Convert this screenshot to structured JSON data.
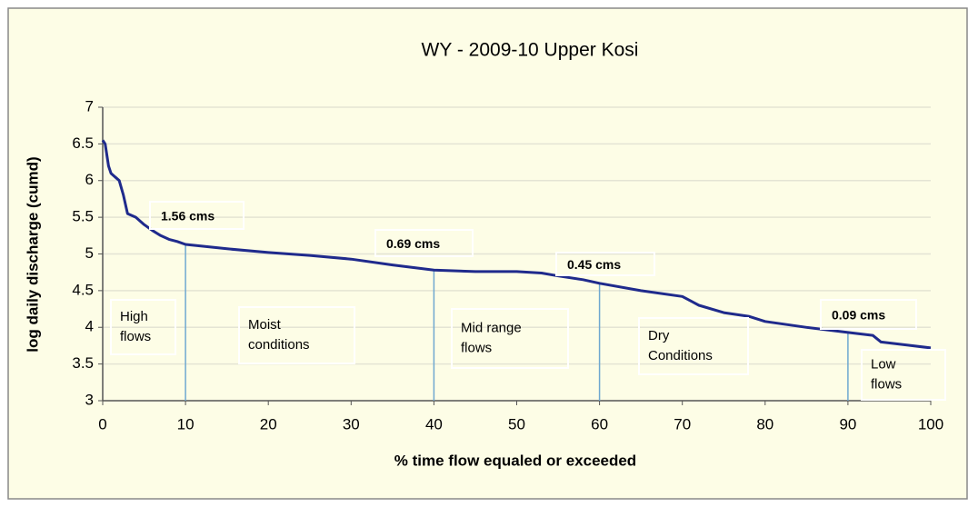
{
  "chart_data": {
    "type": "line",
    "title": "WY - 2009-10 Upper Kosi",
    "xlabel": "% time flow equaled or exceeded",
    "ylabel": "log daily discharge (cumd)",
    "xlim": [
      0,
      100
    ],
    "xticks": [
      0,
      10,
      20,
      30,
      40,
      50,
      60,
      70,
      80,
      90,
      100
    ],
    "ylim": [
      3,
      7
    ],
    "yticks": [
      3,
      3.5,
      4,
      4.5,
      5,
      5.5,
      6,
      6.5,
      7
    ],
    "grid": true,
    "series": [
      {
        "color": "#1f2a8c",
        "x": [
          0,
          0.3,
          0.7,
          1,
          2,
          2.5,
          3,
          4,
          5,
          6,
          7,
          8,
          9,
          10,
          15,
          20,
          25,
          30,
          35,
          40,
          45,
          50,
          53,
          55,
          58,
          60,
          65,
          70,
          72,
          75,
          78,
          80,
          85,
          90,
          93,
          94,
          97,
          100
        ],
        "values": [
          6.55,
          6.5,
          6.2,
          6.1,
          6.0,
          5.8,
          5.55,
          5.5,
          5.4,
          5.32,
          5.25,
          5.2,
          5.17,
          5.13,
          5.07,
          5.02,
          4.98,
          4.93,
          4.85,
          4.78,
          4.76,
          4.76,
          4.74,
          4.7,
          4.65,
          4.6,
          4.5,
          4.42,
          4.3,
          4.2,
          4.15,
          4.08,
          4.0,
          3.93,
          3.89,
          3.8,
          3.76,
          3.72
        ]
      }
    ],
    "reference_lines": [
      {
        "x": 10,
        "label": "1.56 cms"
      },
      {
        "x": 40,
        "label": "0.69 cms"
      },
      {
        "x": 60,
        "label": "0.45 cms"
      },
      {
        "x": 90,
        "label": "0.09 cms"
      }
    ],
    "regions": [
      {
        "lines": [
          "High",
          "flows"
        ]
      },
      {
        "lines": [
          "Moist",
          "conditions"
        ]
      },
      {
        "lines": [
          "Mid range",
          "flows"
        ]
      },
      {
        "lines": [
          "Dry",
          "Conditions"
        ]
      },
      {
        "lines": [
          "Low",
          "flows"
        ]
      }
    ]
  }
}
